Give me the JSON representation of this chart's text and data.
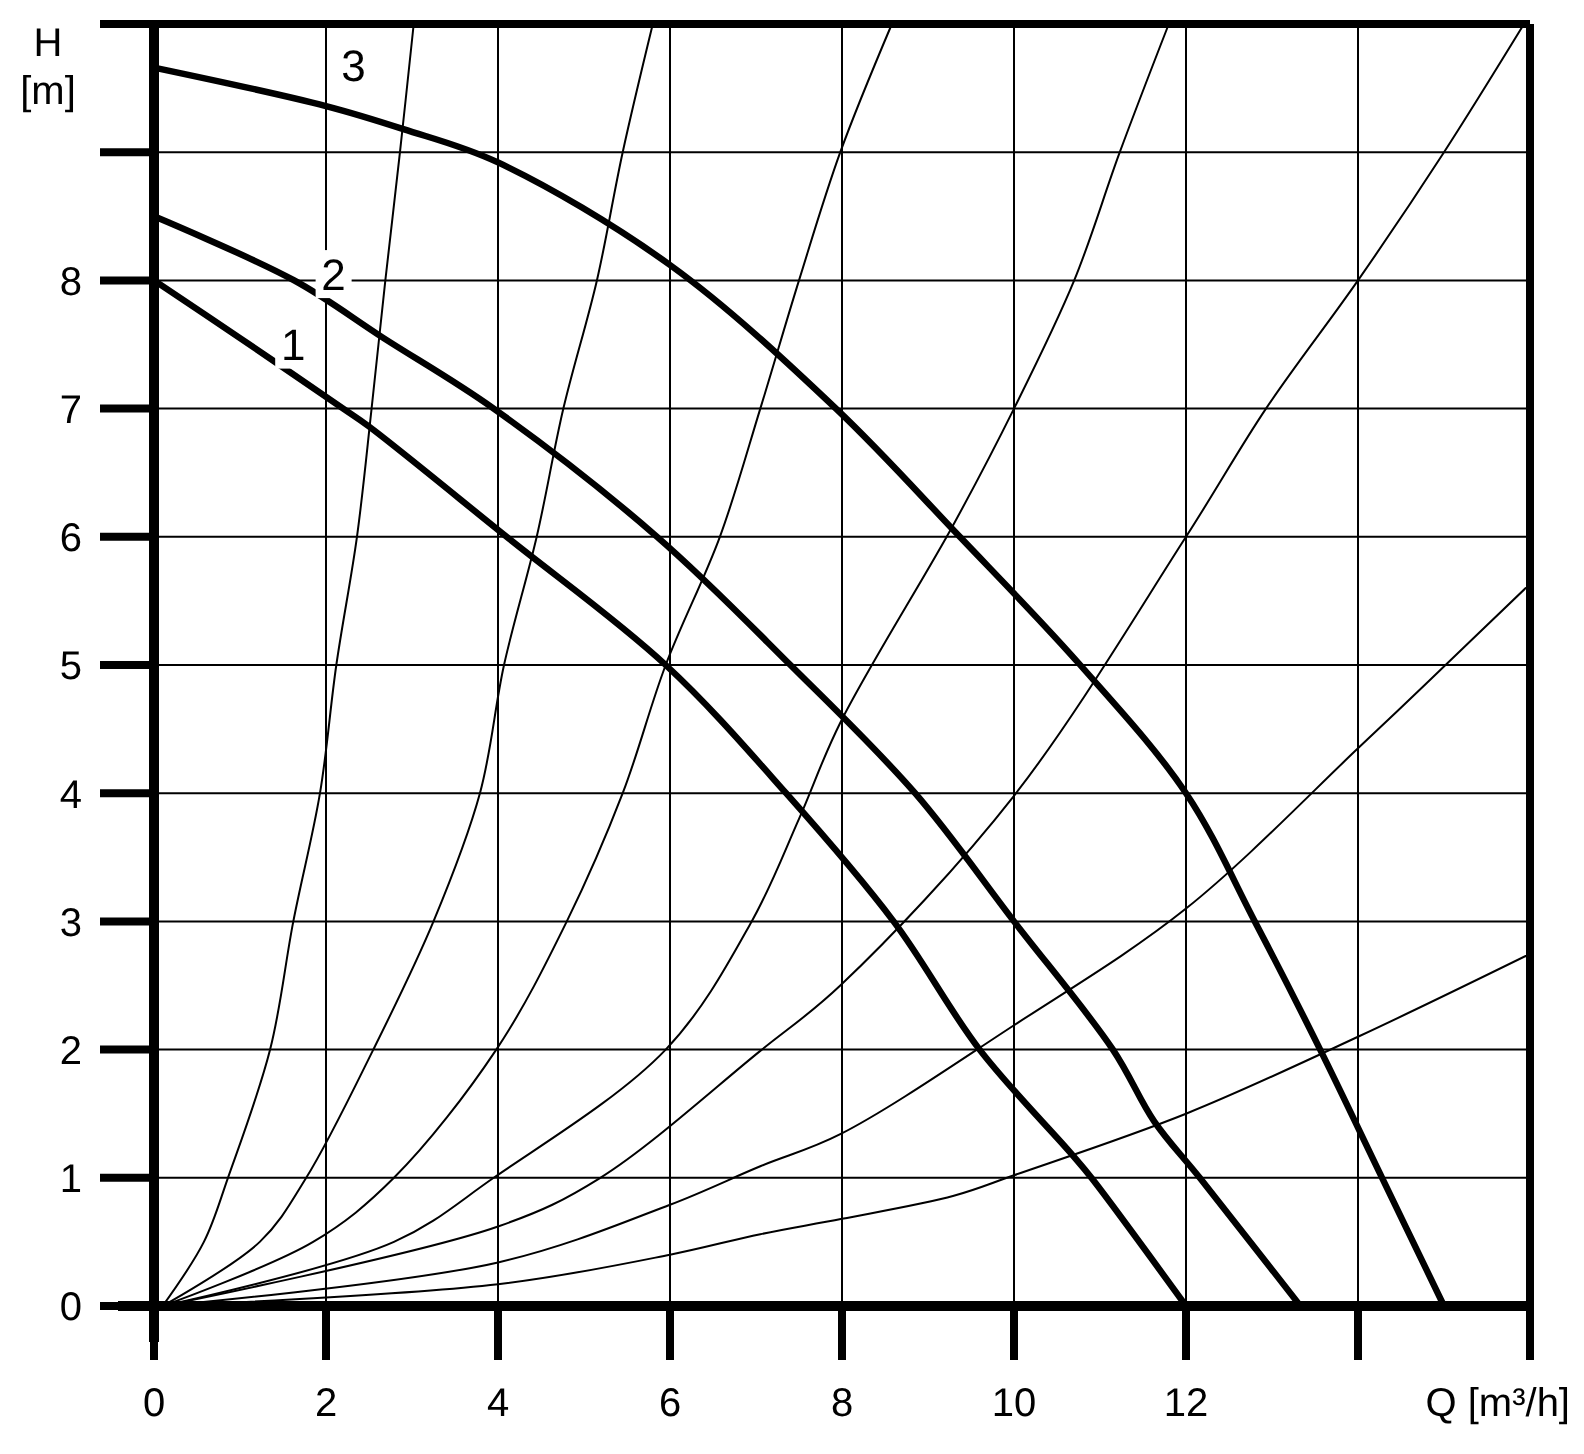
{
  "chart_data": {
    "type": "line",
    "xlabel": "Q [m³/h]",
    "ylabel": "H [m]",
    "xlim": [
      0,
      16
    ],
    "ylim": [
      0,
      10
    ],
    "xticks": [
      0,
      2,
      4,
      6,
      8,
      10,
      12,
      {
        "value": 14,
        "label": null
      },
      {
        "value": 16,
        "label": null
      }
    ],
    "yticks": [
      0,
      1,
      2,
      3,
      4,
      5,
      6,
      7,
      8,
      {
        "value": 9,
        "label": null
      },
      {
        "value": 10,
        "label": null
      }
    ],
    "grid": true,
    "legend": false,
    "marker": "none",
    "line_style": "solid",
    "series": [
      {
        "name": "1",
        "color": "#000000",
        "x": [
          0,
          1,
          2.2,
          2.5,
          4.1,
          5.95,
          7.35,
          8.6,
          9.6,
          10.65,
          10.9,
          12
        ],
        "values": [
          8,
          7.55,
          7,
          6.86,
          6,
          5,
          4,
          3,
          2,
          1.2,
          1,
          0
        ]
      },
      {
        "name": "2",
        "color": "#000000",
        "x": [
          0,
          1.63,
          2.67,
          3.95,
          5.85,
          7.4,
          8.85,
          10,
          11.15,
          11.63,
          12.16,
          13.33
        ],
        "values": [
          8.5,
          8,
          7.55,
          7,
          6,
          5,
          4,
          3,
          2,
          1.44,
          1,
          0
        ]
      },
      {
        "name": "3",
        "color": "#000000",
        "x": [
          0,
          2,
          2.9,
          4,
          6,
          7.93,
          9.37,
          10.77,
          12,
          12.8,
          13.56,
          14.28,
          15
        ],
        "values": [
          9.66,
          9.36,
          9.18,
          8.92,
          8.12,
          7,
          6,
          5,
          4,
          3,
          2,
          1,
          0
        ]
      },
      {
        "color": "#000000",
        "x": [
          0.1,
          0.58,
          0.86,
          1.35,
          1.62,
          1.93,
          2.12,
          2.36,
          2.53,
          2.69,
          2.86,
          3.02
        ],
        "values": [
          0,
          0.5,
          1,
          2,
          3,
          4,
          5,
          6,
          7,
          8,
          9,
          10
        ]
      },
      {
        "color": "#000000",
        "x": [
          0.1,
          1.23,
          1.77,
          2.55,
          3.25,
          3.79,
          4.07,
          4.45,
          4.76,
          5.15,
          5.45,
          5.8
        ],
        "values": [
          0,
          0.5,
          1,
          2,
          3,
          4,
          5,
          6,
          7,
          8,
          9,
          10
        ]
      },
      {
        "color": "#000000",
        "x": [
          0.1,
          1.85,
          2.79,
          3.98,
          4.8,
          5.45,
          5.95,
          6.58,
          7.05,
          7.5,
          7.98,
          8.58
        ],
        "values": [
          0,
          0.5,
          1,
          2,
          3,
          4,
          5,
          6,
          7,
          8,
          9,
          10
        ]
      },
      {
        "color": "#000000",
        "x": [
          0.1,
          2.79,
          3.95,
          5.95,
          6.95,
          7.5,
          7.98,
          9.3,
          10,
          10.7,
          11.23,
          11.8
        ],
        "values": [
          0,
          0.5,
          1,
          2,
          3,
          3.8,
          4.55,
          6.1,
          7,
          8,
          9,
          10
        ]
      },
      {
        "color": "#000000",
        "x": [
          0.1,
          4,
          5.19,
          7.05,
          7.98,
          10,
          12,
          12.93,
          14,
          15,
          15.93
        ],
        "values": [
          0,
          0.62,
          1,
          1.99,
          2.5,
          3.98,
          6,
          7,
          8,
          9,
          10
        ]
      },
      {
        "color": "#000000",
        "x": [
          0.1,
          4,
          6,
          7.05,
          7.98,
          10,
          12,
          14,
          14.8,
          15.95
        ],
        "values": [
          0,
          0.34,
          0.79,
          1.09,
          1.34,
          2.19,
          3.1,
          4.35,
          4.86,
          5.6
        ]
      },
      {
        "color": "#000000",
        "x": [
          0.1,
          4,
          6,
          7.05,
          8,
          9.3,
          10,
          12,
          14,
          15.95
        ],
        "values": [
          0,
          0.17,
          0.4,
          0.56,
          0.68,
          0.86,
          1.02,
          1.5,
          2.1,
          2.73
        ]
      }
    ]
  }
}
